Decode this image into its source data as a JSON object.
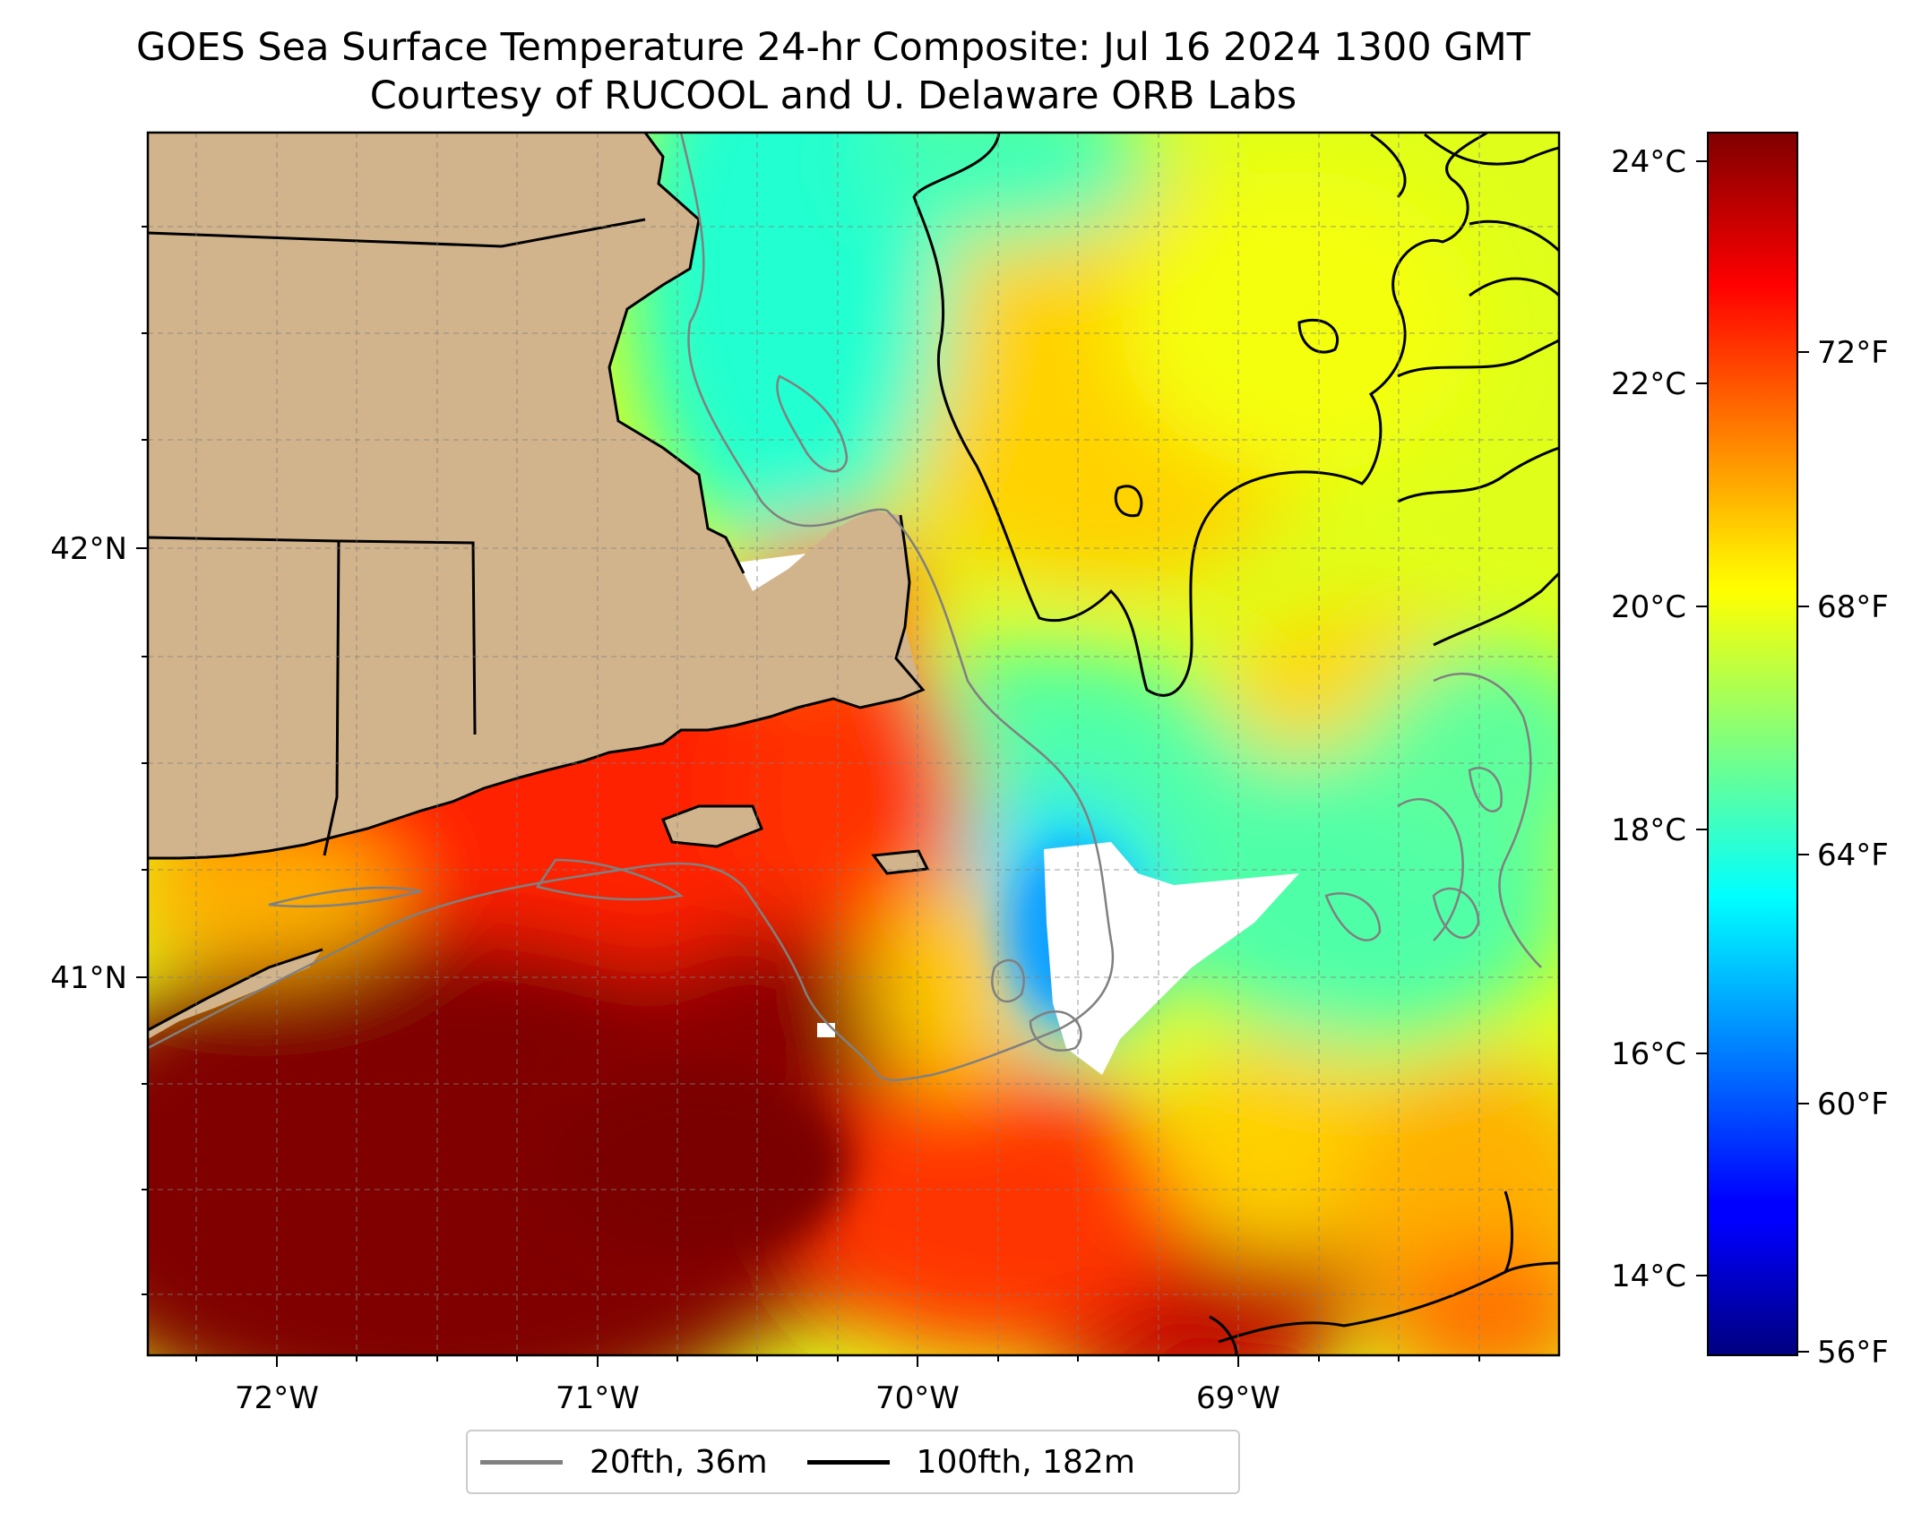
{
  "title": {
    "line1": "GOES Sea Surface Temperature 24-hr Composite: Jul 16 2024 1300 GMT",
    "line2": "Courtesy of RUCOOL and U. Delaware ORB Labs"
  },
  "map": {
    "lon_labels": [
      "72°W",
      "71°W",
      "70°W",
      "69°W"
    ],
    "lat_labels": [
      "42°N",
      "41°N"
    ],
    "colors": {
      "land": "#d2b48c",
      "contour_20fth": "#808080",
      "contour_100fth": "#000000",
      "no_data": "#ffffff"
    }
  },
  "colorbar": {
    "celsius_labels": [
      "24°C",
      "22°C",
      "20°C",
      "18°C",
      "16°C",
      "14°C"
    ],
    "fahrenheit_labels": [
      "72°F",
      "68°F",
      "64°F",
      "60°F",
      "56°F"
    ],
    "colormap": "jet"
  },
  "legend": {
    "items": [
      {
        "label": "20fth, 36m",
        "color": "#808080"
      },
      {
        "label": "100fth, 182m",
        "color": "#000000"
      }
    ]
  }
}
